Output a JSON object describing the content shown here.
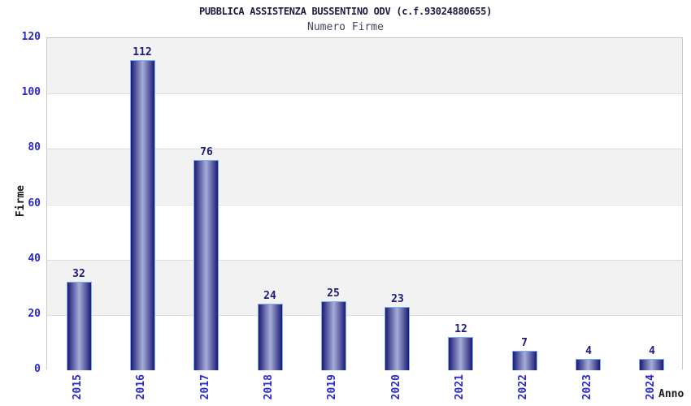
{
  "chart_data": {
    "type": "bar",
    "title": "PUBBLICA ASSISTENZA BUSSENTINO ODV (c.f.93024880655)",
    "subtitle": "Numero Firme",
    "categories": [
      "2015",
      "2016",
      "2017",
      "2018",
      "2019",
      "2020",
      "2021",
      "2022",
      "2023",
      "2024"
    ],
    "values": [
      32,
      112,
      76,
      24,
      25,
      23,
      12,
      7,
      4,
      4
    ],
    "xlabel": "Anno",
    "ylabel": "Firme",
    "ylim": [
      0,
      120
    ],
    "ytick_step": 20,
    "yticks": [
      0,
      20,
      40,
      60,
      80,
      100,
      120
    ],
    "legend": "none",
    "grid": "horizontal-bands",
    "colors": {
      "title_text": "#1b1b3f",
      "subtitle_text": "#45455f",
      "tick_text_blue": "#2828cf",
      "value_label_navy": "#1c1c78",
      "axis_label_dark": "#1c1c1c",
      "band_gray": "#f2f2f2",
      "band_white": "#ffffff",
      "grid_line": "#dcdcdc",
      "plot_border": "#c8c8c8",
      "bar_edge_dark": "#1b1b75",
      "bar_center_light": "#a6aed8",
      "bar_outline_lightblue": "#79b0f0"
    }
  }
}
